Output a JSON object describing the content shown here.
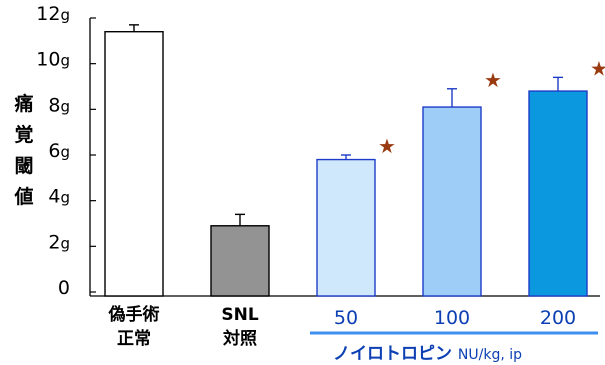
{
  "chart_data": {
    "type": "bar",
    "ylabel": "痛覚閾値",
    "ylim": [
      0,
      12
    ],
    "yticks": [
      {
        "value": 0,
        "label": "0",
        "unit": ""
      },
      {
        "value": 2,
        "label": "2",
        "unit": "g"
      },
      {
        "value": 4,
        "label": "4",
        "unit": "g"
      },
      {
        "value": 6,
        "label": "6",
        "unit": "g"
      },
      {
        "value": 8,
        "label": "8",
        "unit": "g"
      },
      {
        "value": 10,
        "label": "10",
        "unit": "g"
      },
      {
        "value": 12,
        "label": "12",
        "unit": "g"
      }
    ],
    "categories": [
      "偽手術\n正常",
      "SNL\n対照",
      "50",
      "100",
      "200"
    ],
    "values": [
      11.4,
      2.9,
      5.8,
      8.1,
      8.8
    ],
    "errors": [
      0.3,
      0.5,
      0.2,
      0.8,
      0.6
    ],
    "significant": [
      false,
      false,
      true,
      true,
      true
    ],
    "bar_fill": [
      "#ffffff",
      "#939393",
      "#cfe8fc",
      "#9ecdf7",
      "#0b98de"
    ],
    "bar_stroke": [
      "#000000",
      "#000000",
      "#1e3cc8",
      "#1e3cc8",
      "#1e3cc8"
    ],
    "group_label": {
      "name": "ノイロトロピン",
      "unit": "NU/kg, ip",
      "color": "#0b3fb3",
      "line_color": "#3d8ff0"
    },
    "marker_symbol": "★",
    "marker_color": "#9a3a10"
  }
}
